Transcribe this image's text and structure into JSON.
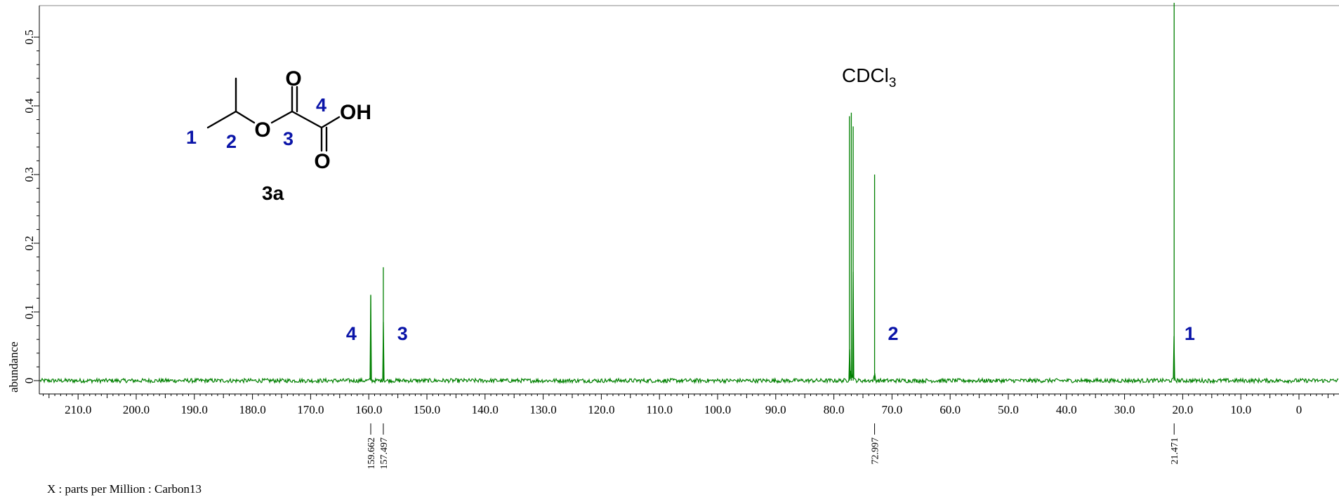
{
  "chart_data": {
    "type": "line",
    "title": "",
    "xlabel": "X : parts per Million : Carbon13",
    "ylabel": "abundance",
    "xlim": [
      216.0,
      -6.5
    ],
    "ylim": [
      -0.02,
      0.55
    ],
    "x_axis_reversed": true,
    "x_ticks": [
      210.0,
      200.0,
      190.0,
      180.0,
      170.0,
      160.0,
      150.0,
      140.0,
      130.0,
      120.0,
      110.0,
      100.0,
      90.0,
      80.0,
      70.0,
      60.0,
      50.0,
      40.0,
      30.0,
      20.0,
      10.0,
      0
    ],
    "x_tick_labels": [
      "210.0",
      "200.0",
      "190.0",
      "180.0",
      "170.0",
      "160.0",
      "150.0",
      "140.0",
      "130.0",
      "120.0",
      "110.0",
      "100.0",
      "90.0",
      "80.0",
      "70.0",
      "60.0",
      "50.0",
      "40.0",
      "30.0",
      "20.0",
      "10.0",
      "0"
    ],
    "y_ticks": [
      0,
      0.1,
      0.2,
      0.3,
      0.4,
      0.5
    ],
    "y_tick_labels": [
      "0",
      "0.1",
      "0.2",
      "0.3",
      "0.4",
      "0.5"
    ],
    "series": [
      {
        "color": "#008000",
        "peaks": [
          {
            "ppm": 159.662,
            "height": 0.125
          },
          {
            "ppm": 157.497,
            "height": 0.165
          },
          {
            "ppm": 77.32,
            "height": 0.385
          },
          {
            "ppm": 77.0,
            "height": 0.39
          },
          {
            "ppm": 76.68,
            "height": 0.37
          },
          {
            "ppm": 72.997,
            "height": 0.3
          },
          {
            "ppm": 21.471,
            "height": 0.55
          }
        ]
      }
    ],
    "peak_labels": [
      "159.662",
      "157.497",
      "72.997",
      "21.471"
    ],
    "assignments": [
      {
        "label": "4",
        "ppm": 163.0
      },
      {
        "label": "3",
        "ppm": 154.2
      },
      {
        "label": "2",
        "ppm": 69.8
      },
      {
        "label": "1",
        "ppm": 18.8
      }
    ],
    "solvent_label": "CDCl",
    "solvent_subscript": "3",
    "structure": {
      "compound_label": "3a",
      "atom_numbers": [
        "1",
        "2",
        "3",
        "4"
      ],
      "atoms": {
        "o_ester": "O",
        "o_carbonyl_top": "O",
        "o_carbonyl_bottom": "O",
        "oh": "OH"
      }
    }
  }
}
